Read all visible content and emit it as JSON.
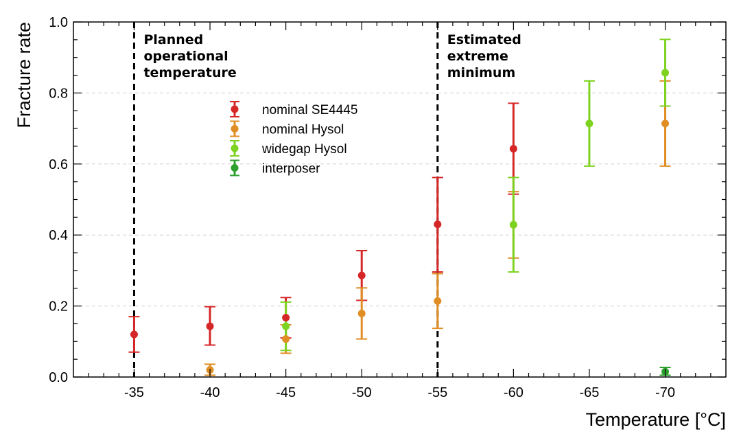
{
  "chart_data": {
    "type": "scatter",
    "title": "",
    "xlabel": "Temperature [°C]",
    "ylabel": "Fracture rate",
    "x_categories": [
      "-35",
      "-40",
      "-45",
      "-50",
      "-55",
      "-60",
      "-65",
      "-70"
    ],
    "xlim": [
      -31,
      -74
    ],
    "ylim": [
      0.0,
      1.0
    ],
    "yticks": [
      "0.0",
      "0.2",
      "0.4",
      "0.6",
      "0.8",
      "1.0"
    ],
    "grid": "horizontal-dashed",
    "legend_position": "upper-center",
    "series": [
      {
        "name": "nominal SE4445",
        "color": "#d62728",
        "points": [
          {
            "x": -35,
            "y": 0.12,
            "low": 0.07,
            "high": 0.17
          },
          {
            "x": -40,
            "y": 0.143,
            "low": 0.09,
            "high": 0.198
          },
          {
            "x": -45,
            "y": 0.167,
            "low": 0.11,
            "high": 0.224
          },
          {
            "x": -50,
            "y": 0.286,
            "low": 0.216,
            "high": 0.356
          },
          {
            "x": -55,
            "y": 0.43,
            "low": 0.296,
            "high": 0.562
          },
          {
            "x": -60,
            "y": 0.643,
            "low": 0.515,
            "high": 0.771
          }
        ]
      },
      {
        "name": "nominal Hysol",
        "color": "#e08e24",
        "points": [
          {
            "x": -40,
            "y": 0.02,
            "low": 0.005,
            "high": 0.036
          },
          {
            "x": -45,
            "y": 0.107,
            "low": 0.067,
            "high": 0.147
          },
          {
            "x": -50,
            "y": 0.179,
            "low": 0.107,
            "high": 0.251
          },
          {
            "x": -55,
            "y": 0.214,
            "low": 0.137,
            "high": 0.291
          },
          {
            "x": -60,
            "y": 0.429,
            "low": 0.335,
            "high": 0.522
          },
          {
            "x": -70,
            "y": 0.714,
            "low": 0.594,
            "high": 0.834
          }
        ]
      },
      {
        "name": "widegap Hysol",
        "color": "#7ed321",
        "points": [
          {
            "x": -45,
            "y": 0.143,
            "low": 0.075,
            "high": 0.211
          },
          {
            "x": -60,
            "y": 0.429,
            "low": 0.296,
            "high": 0.562
          },
          {
            "x": -65,
            "y": 0.714,
            "low": 0.594,
            "high": 0.834
          },
          {
            "x": -70,
            "y": 0.857,
            "low": 0.763,
            "high": 0.951
          }
        ]
      },
      {
        "name": "interposer",
        "color": "#2ca02c",
        "points": [
          {
            "x": -70,
            "y": 0.015,
            "low": 0.005,
            "high": 0.027
          }
        ]
      }
    ],
    "vlines": [
      {
        "x": -35,
        "label_lines": [
          "Planned",
          "operational",
          "temperature"
        ]
      },
      {
        "x": -55,
        "label_lines": [
          "Estimated",
          "extreme",
          "minimum"
        ]
      }
    ]
  }
}
